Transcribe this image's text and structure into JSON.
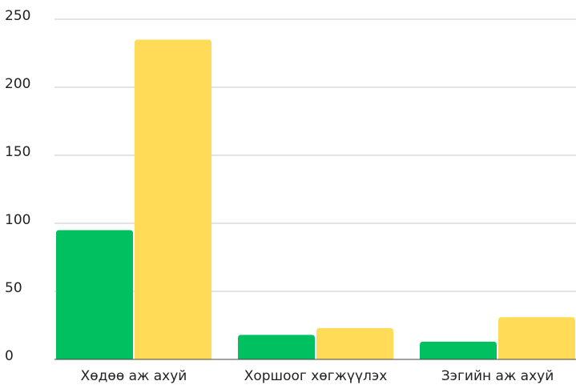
{
  "chart_data": {
    "type": "bar",
    "categories": [
      "Хөдөө аж ахуй",
      "Хоршоог хөгжүүлэх",
      "Зэгийн аж ахуй"
    ],
    "series": [
      {
        "color": "#00c060",
        "values": [
          95,
          18,
          13
        ]
      },
      {
        "color": "#ffdb58",
        "values": [
          235,
          23,
          31
        ]
      }
    ],
    "ylim": [
      0,
      250
    ],
    "yticks": [
      0,
      50,
      100,
      150,
      200,
      250
    ],
    "grid": true
  }
}
